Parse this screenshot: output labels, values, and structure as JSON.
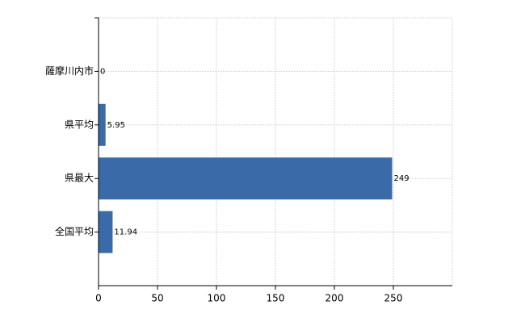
{
  "chart_data": {
    "type": "hbar",
    "categories": [
      "薩摩川内市",
      "県平均",
      "県最大",
      "全国平均"
    ],
    "values": [
      0,
      5.95,
      249,
      11.94
    ],
    "color": "#3a6aa8",
    "xlim": [
      0,
      300
    ],
    "xticks": [
      0,
      50,
      100,
      150,
      200,
      250
    ],
    "grid": true
  }
}
